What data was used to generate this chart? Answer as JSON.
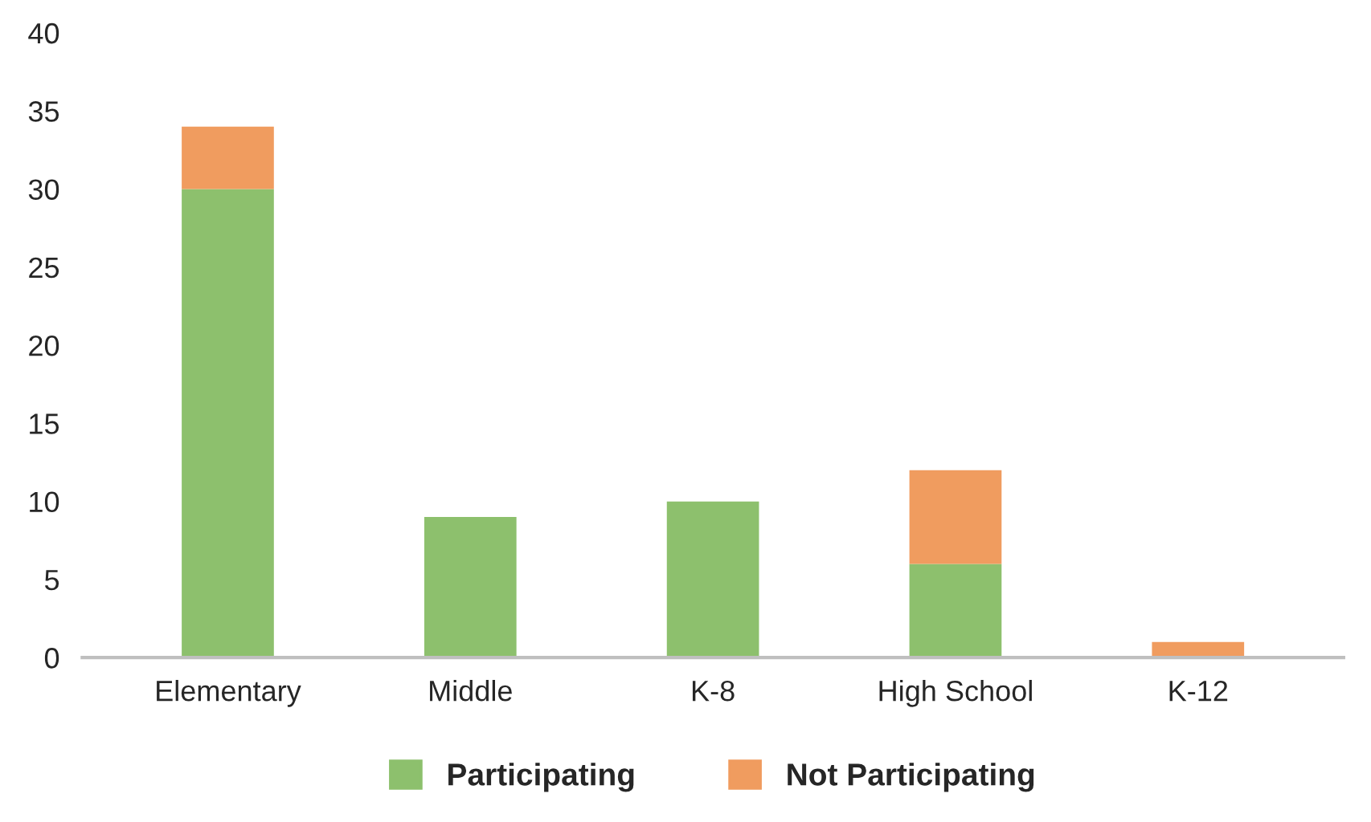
{
  "chart_data": {
    "type": "bar",
    "stacked": true,
    "categories": [
      "Elementary",
      "Middle",
      "K-8",
      "High School",
      "K-12"
    ],
    "series": [
      {
        "name": "Participating",
        "color": "#8dc06d",
        "values": [
          30,
          9,
          10,
          6,
          0
        ]
      },
      {
        "name": "Not Participating",
        "color": "#f09c5f",
        "values": [
          4,
          0,
          0,
          6,
          1
        ]
      }
    ],
    "ylim": [
      0,
      40
    ],
    "yticks": [
      0,
      5,
      10,
      15,
      20,
      25,
      30,
      35,
      40
    ],
    "grid": false,
    "legend": "bottom"
  }
}
